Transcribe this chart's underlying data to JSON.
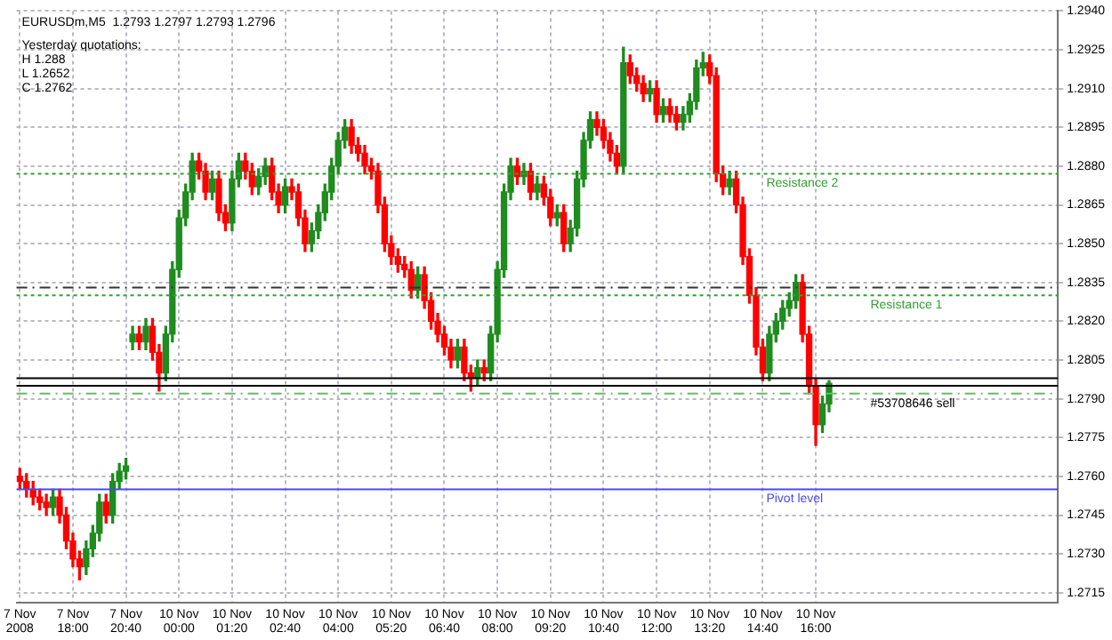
{
  "chart_data": {
    "type": "candlestick",
    "categories": [
      "7 Nov 2008",
      null,
      null,
      null,
      null,
      null,
      null,
      null,
      "7 Nov 18:00",
      null,
      null,
      null,
      null,
      null,
      null,
      null,
      "7 Nov 20:40",
      null,
      null,
      null,
      null,
      null,
      null,
      null,
      "10 Nov 00:00",
      null,
      null,
      null,
      null,
      null,
      null,
      null,
      "10 Nov 01:20",
      null,
      null,
      null,
      null,
      null,
      null,
      null,
      "10 Nov 02:40",
      null,
      null,
      null,
      null,
      null,
      null,
      null,
      "10 Nov 04:00",
      null,
      null,
      null,
      null,
      null,
      null,
      null,
      "10 Nov 05:20",
      null,
      null,
      null,
      null,
      null,
      null,
      null,
      "10 Nov 06:40",
      null,
      null,
      null,
      null,
      null,
      null,
      null,
      "10 Nov 08:00",
      null,
      null,
      null,
      null,
      null,
      null,
      null,
      "10 Nov 09:20",
      null,
      null,
      null,
      null,
      null,
      null,
      null,
      "10 Nov 10:40",
      null,
      null,
      null,
      null,
      null,
      null,
      null,
      "10 Nov 12:00",
      null,
      null,
      null,
      null,
      null,
      null,
      null,
      "10 Nov 13:20",
      null,
      null,
      null,
      null,
      null,
      null,
      null,
      "10 Nov 14:40",
      null,
      null,
      null,
      null,
      null,
      null,
      null,
      "10 Nov 16:00",
      null,
      null,
      null,
      null,
      null,
      null,
      null,
      null,
      null,
      null,
      null,
      null,
      null,
      null,
      null,
      null,
      null,
      null,
      null,
      null,
      null,
      null,
      null,
      null,
      null,
      null,
      null,
      null,
      null,
      null,
      null,
      null,
      null,
      null,
      null,
      null
    ],
    "ohlc": [
      [
        1.276,
        1.2763,
        1.2755,
        1.2758
      ],
      [
        1.2758,
        1.2761,
        1.2752,
        1.2755
      ],
      [
        1.2755,
        1.2758,
        1.2749,
        1.2752
      ],
      [
        1.2752,
        1.2755,
        1.2747,
        1.275
      ],
      [
        1.275,
        1.2753,
        1.2745,
        1.2748
      ],
      [
        1.2748,
        1.2755,
        1.2745,
        1.2752
      ],
      [
        1.2752,
        1.2755,
        1.2742,
        1.2745
      ],
      [
        1.2745,
        1.2748,
        1.2732,
        1.2735
      ],
      [
        1.2735,
        1.2738,
        1.2725,
        1.2728
      ],
      [
        1.2728,
        1.2731,
        1.272,
        1.2725
      ],
      [
        1.2725,
        1.2735,
        1.2722,
        1.2732
      ],
      [
        1.2732,
        1.2741,
        1.2729,
        1.2738
      ],
      [
        1.2738,
        1.2753,
        1.2735,
        1.275
      ],
      [
        1.275,
        1.2753,
        1.2742,
        1.2745
      ],
      [
        1.2745,
        1.2761,
        1.2742,
        1.2758
      ],
      [
        1.2758,
        1.2765,
        1.2755,
        1.2762
      ],
      [
        1.2762,
        1.2767,
        1.2759,
        1.2764
      ],
      [
        1.2812,
        1.2818,
        1.2809,
        1.2815
      ],
      [
        1.2815,
        1.2818,
        1.2809,
        1.2812
      ],
      [
        1.2812,
        1.2821,
        1.2809,
        1.2818
      ],
      [
        1.2818,
        1.2821,
        1.2805,
        1.2808
      ],
      [
        1.2808,
        1.2811,
        1.2793,
        1.28
      ],
      [
        1.28,
        1.2818,
        1.2797,
        1.2815
      ],
      [
        1.2815,
        1.2843,
        1.2812,
        1.284
      ],
      [
        1.284,
        1.2863,
        1.2837,
        1.286
      ],
      [
        1.286,
        1.2873,
        1.2857,
        1.287
      ],
      [
        1.287,
        1.2885,
        1.2867,
        1.2882
      ],
      [
        1.2882,
        1.2885,
        1.2875,
        1.2878
      ],
      [
        1.2878,
        1.2881,
        1.2867,
        1.287
      ],
      [
        1.287,
        1.2878,
        1.2867,
        1.2875
      ],
      [
        1.2875,
        1.2878,
        1.2859,
        1.2862
      ],
      [
        1.2862,
        1.2865,
        1.2855,
        1.2858
      ],
      [
        1.2858,
        1.2878,
        1.2855,
        1.2875
      ],
      [
        1.2875,
        1.2885,
        1.2872,
        1.2882
      ],
      [
        1.2882,
        1.2885,
        1.2875,
        1.2878
      ],
      [
        1.2878,
        1.2881,
        1.2869,
        1.2872
      ],
      [
        1.2872,
        1.2879,
        1.2869,
        1.2876
      ],
      [
        1.2876,
        1.2883,
        1.2873,
        1.288
      ],
      [
        1.288,
        1.2883,
        1.2867,
        1.287
      ],
      [
        1.287,
        1.2873,
        1.2862,
        1.2865
      ],
      [
        1.2865,
        1.2875,
        1.2862,
        1.2872
      ],
      [
        1.2872,
        1.2875,
        1.2867,
        1.287
      ],
      [
        1.287,
        1.2873,
        1.2857,
        1.286
      ],
      [
        1.286,
        1.2863,
        1.2847,
        1.285
      ],
      [
        1.285,
        1.2858,
        1.2847,
        1.2855
      ],
      [
        1.2855,
        1.2865,
        1.2852,
        1.2862
      ],
      [
        1.2862,
        1.2873,
        1.2859,
        1.287
      ],
      [
        1.287,
        1.2883,
        1.2867,
        1.288
      ],
      [
        1.288,
        1.2893,
        1.2877,
        1.289
      ],
      [
        1.289,
        1.2898,
        1.2887,
        1.2895
      ],
      [
        1.2895,
        1.2898,
        1.2885,
        1.2888
      ],
      [
        1.2888,
        1.2891,
        1.2882,
        1.2885
      ],
      [
        1.2885,
        1.2888,
        1.2877,
        1.288
      ],
      [
        1.288,
        1.2883,
        1.2875,
        1.2878
      ],
      [
        1.2878,
        1.2881,
        1.2862,
        1.2865
      ],
      [
        1.2865,
        1.2868,
        1.2847,
        1.285
      ],
      [
        1.285,
        1.2853,
        1.2842,
        1.2845
      ],
      [
        1.2845,
        1.2848,
        1.2839,
        1.2842
      ],
      [
        1.2842,
        1.2845,
        1.2837,
        1.284
      ],
      [
        1.284,
        1.2843,
        1.2829,
        1.2832
      ],
      [
        1.2832,
        1.2841,
        1.2829,
        1.2838
      ],
      [
        1.2838,
        1.2841,
        1.2825,
        1.2828
      ],
      [
        1.2828,
        1.2831,
        1.2817,
        1.282
      ],
      [
        1.282,
        1.2823,
        1.2812,
        1.2815
      ],
      [
        1.2815,
        1.2818,
        1.2807,
        1.281
      ],
      [
        1.281,
        1.2813,
        1.2802,
        1.2805
      ],
      [
        1.2805,
        1.2813,
        1.2802,
        1.281
      ],
      [
        1.281,
        1.2813,
        1.2797,
        1.28
      ],
      [
        1.28,
        1.2803,
        1.2793,
        1.2798
      ],
      [
        1.2798,
        1.2805,
        1.2795,
        1.2802
      ],
      [
        1.2802,
        1.2805,
        1.2797,
        1.28
      ],
      [
        1.28,
        1.2818,
        1.2797,
        1.2815
      ],
      [
        1.2815,
        1.2843,
        1.2812,
        1.284
      ],
      [
        1.284,
        1.2873,
        1.2837,
        1.287
      ],
      [
        1.287,
        1.2883,
        1.2867,
        1.288
      ],
      [
        1.288,
        1.2883,
        1.2873,
        1.2876
      ],
      [
        1.2876,
        1.2881,
        1.2873,
        1.2878
      ],
      [
        1.2878,
        1.2881,
        1.2867,
        1.287
      ],
      [
        1.287,
        1.2876,
        1.2867,
        1.2873
      ],
      [
        1.2873,
        1.2876,
        1.2865,
        1.2868
      ],
      [
        1.2868,
        1.2871,
        1.2857,
        1.286
      ],
      [
        1.286,
        1.2865,
        1.2857,
        1.2862
      ],
      [
        1.2862,
        1.2865,
        1.2847,
        1.285
      ],
      [
        1.285,
        1.2859,
        1.2847,
        1.2856
      ],
      [
        1.2856,
        1.2878,
        1.2853,
        1.2875
      ],
      [
        1.2875,
        1.2893,
        1.2872,
        1.289
      ],
      [
        1.289,
        1.2901,
        1.2887,
        1.2898
      ],
      [
        1.2898,
        1.2901,
        1.2892,
        1.2895
      ],
      [
        1.2895,
        1.2898,
        1.2887,
        1.289
      ],
      [
        1.289,
        1.2893,
        1.2882,
        1.2885
      ],
      [
        1.2885,
        1.2888,
        1.2877,
        1.288
      ],
      [
        1.288,
        1.2926,
        1.2877,
        1.292
      ],
      [
        1.292,
        1.2923,
        1.2912,
        1.2915
      ],
      [
        1.2915,
        1.2918,
        1.2909,
        1.2912
      ],
      [
        1.2912,
        1.2915,
        1.2905,
        1.2908
      ],
      [
        1.2908,
        1.2913,
        1.2905,
        1.291
      ],
      [
        1.291,
        1.2913,
        1.2897,
        1.29
      ],
      [
        1.29,
        1.2906,
        1.2897,
        1.2903
      ],
      [
        1.2903,
        1.2906,
        1.2897,
        1.29
      ],
      [
        1.29,
        1.2903,
        1.2894,
        1.2897
      ],
      [
        1.2897,
        1.2903,
        1.2894,
        1.29
      ],
      [
        1.29,
        1.2908,
        1.2897,
        1.2905
      ],
      [
        1.2905,
        1.2921,
        1.2902,
        1.2918
      ],
      [
        1.2918,
        1.2924,
        1.2915,
        1.292
      ],
      [
        1.292,
        1.2923,
        1.2912,
        1.2915
      ],
      [
        1.2915,
        1.2918,
        1.2874,
        1.2877
      ],
      [
        1.2877,
        1.288,
        1.2869,
        1.2872
      ],
      [
        1.2872,
        1.2878,
        1.2869,
        1.2875
      ],
      [
        1.2875,
        1.2878,
        1.2862,
        1.2865
      ],
      [
        1.2865,
        1.2868,
        1.2842,
        1.2845
      ],
      [
        1.2845,
        1.2848,
        1.2827,
        1.283
      ],
      [
        1.283,
        1.2833,
        1.2807,
        1.281
      ],
      [
        1.281,
        1.2813,
        1.2797,
        1.28
      ],
      [
        1.28,
        1.2818,
        1.2797,
        1.2815
      ],
      [
        1.2815,
        1.2823,
        1.2812,
        1.282
      ],
      [
        1.282,
        1.2828,
        1.2817,
        1.2825
      ],
      [
        1.2825,
        1.2831,
        1.2822,
        1.2828
      ],
      [
        1.2828,
        1.2838,
        1.2825,
        1.2835
      ],
      [
        1.2835,
        1.2838,
        1.2812,
        1.2815
      ],
      [
        1.2815,
        1.2818,
        1.2792,
        1.2795
      ],
      [
        1.2795,
        1.2798,
        1.2772,
        1.278
      ],
      [
        1.278,
        1.2791,
        1.2777,
        1.2788
      ],
      [
        1.2788,
        1.2797,
        1.2785,
        1.2796
      ],
      null,
      null,
      null,
      null,
      null,
      null,
      null,
      null,
      null,
      null,
      null,
      null,
      null,
      null,
      null,
      null,
      null,
      null,
      null,
      null,
      null,
      null,
      null,
      null,
      null,
      null,
      null,
      null,
      null,
      null,
      null,
      null,
      null,
      null
    ],
    "colors": [
      "#ff0000",
      "#ff0000",
      "#ff0000",
      "#ff0000",
      "#ff0000",
      "#1e8c1e",
      "#ff0000",
      "#ff0000",
      "#ff0000",
      "#ff0000",
      "#1e8c1e",
      "#1e8c1e",
      "#1e8c1e",
      "#ff0000",
      "#1e8c1e",
      "#1e8c1e",
      "#1e8c1e",
      "#1e8c1e",
      "#ff0000",
      "#1e8c1e",
      "#ff0000",
      "#ff0000",
      "#1e8c1e",
      "#1e8c1e",
      "#1e8c1e",
      "#1e8c1e",
      "#1e8c1e",
      "#ff0000",
      "#ff0000",
      "#1e8c1e",
      "#ff0000",
      "#ff0000",
      "#1e8c1e",
      "#1e8c1e",
      "#ff0000",
      "#ff0000",
      "#1e8c1e",
      "#1e8c1e",
      "#ff0000",
      "#ff0000",
      "#1e8c1e",
      "#ff0000",
      "#ff0000",
      "#ff0000",
      "#1e8c1e",
      "#1e8c1e",
      "#1e8c1e",
      "#1e8c1e",
      "#1e8c1e",
      "#1e8c1e",
      "#ff0000",
      "#ff0000",
      "#ff0000",
      "#ff0000",
      "#ff0000",
      "#ff0000",
      "#ff0000",
      "#ff0000",
      "#ff0000",
      "#ff0000",
      "#1e8c1e",
      "#ff0000",
      "#ff0000",
      "#ff0000",
      "#ff0000",
      "#ff0000",
      "#1e8c1e",
      "#ff0000",
      "#ff0000",
      "#1e8c1e",
      "#ff0000",
      "#1e8c1e",
      "#1e8c1e",
      "#1e8c1e",
      "#1e8c1e",
      "#ff0000",
      "#1e8c1e",
      "#ff0000",
      "#1e8c1e",
      "#ff0000",
      "#ff0000",
      "#1e8c1e",
      "#ff0000",
      "#1e8c1e",
      "#1e8c1e",
      "#1e8c1e",
      "#1e8c1e",
      "#ff0000",
      "#ff0000",
      "#ff0000",
      "#ff0000",
      "#1e8c1e",
      "#ff0000",
      "#ff0000",
      "#ff0000",
      "#1e8c1e",
      "#ff0000",
      "#1e8c1e",
      "#ff0000",
      "#ff0000",
      "#1e8c1e",
      "#1e8c1e",
      "#1e8c1e",
      "#1e8c1e",
      "#ff0000",
      "#ff0000",
      "#ff0000",
      "#1e8c1e",
      "#ff0000",
      "#ff0000",
      "#ff0000",
      "#ff0000",
      "#ff0000",
      "#1e8c1e",
      "#1e8c1e",
      "#1e8c1e",
      "#1e8c1e",
      "#1e8c1e",
      "#ff0000",
      "#ff0000",
      "#ff0000",
      "#1e8c1e",
      "#1e8c1e",
      null,
      null,
      null,
      null,
      null,
      null,
      null,
      null,
      null,
      null,
      null,
      null,
      null,
      null,
      null,
      null,
      null,
      null,
      null,
      null,
      null,
      null,
      null,
      null,
      null,
      null,
      null,
      null,
      null,
      null,
      null,
      null,
      null,
      null
    ],
    "ylim": [
      1.2711,
      1.294
    ],
    "yticks": [
      {
        "value": 1.2715,
        "label": "1.2715"
      },
      {
        "value": 1.273,
        "label": "1.2730"
      },
      {
        "value": 1.2745,
        "label": "1.2745"
      },
      {
        "value": 1.276,
        "label": "1.2760"
      },
      {
        "value": 1.2775,
        "label": "1.2775"
      },
      {
        "value": 1.279,
        "label": "1.2790"
      },
      {
        "value": 1.2805,
        "label": "1.2805"
      },
      {
        "value": 1.282,
        "label": "1.2820"
      },
      {
        "value": 1.2835,
        "label": "1.2835"
      },
      {
        "value": 1.285,
        "label": "1.2850"
      },
      {
        "value": 1.2865,
        "label": "1.2865"
      },
      {
        "value": 1.288,
        "label": "1.2880"
      },
      {
        "value": 1.2895,
        "label": "1.2895"
      },
      {
        "value": 1.291,
        "label": "1.2910"
      },
      {
        "value": 1.2925,
        "label": "1.2925"
      },
      {
        "value": 1.294,
        "label": "1.2940"
      }
    ],
    "grid": true,
    "ref_lines": [
      {
        "axis": "y",
        "value": 1.2877,
        "label": "Resistance 2",
        "color": "#33a033",
        "line_style": "dotted"
      },
      {
        "axis": "y",
        "value": 1.2833,
        "label": null,
        "color": "#333333",
        "line_style": "dashed"
      },
      {
        "axis": "y",
        "value": 1.283,
        "label": "Resistance 1",
        "color": "#33a033",
        "line_style": "dotted"
      },
      {
        "axis": "y",
        "value": 1.2798,
        "label": null,
        "color": "#000000",
        "line_style": "solid"
      },
      {
        "axis": "y",
        "value": 1.2795,
        "label": "#53708646 sell",
        "color": "#000000",
        "line_style": "solid"
      },
      {
        "axis": "y",
        "value": 1.2792,
        "label": null,
        "color": "#66bb66",
        "line_style": "dashed"
      },
      {
        "axis": "y",
        "value": 1.2755,
        "label": "Pivot level",
        "color": "#4a4ae8",
        "line_style": "solid"
      }
    ],
    "annotations": [
      "EURUSDm,M5  1.2793 1.2797 1.2793 1.2796",
      "Yesterday quotations:",
      "H 1.288",
      "L 1.2652",
      "C 1.2762"
    ]
  }
}
